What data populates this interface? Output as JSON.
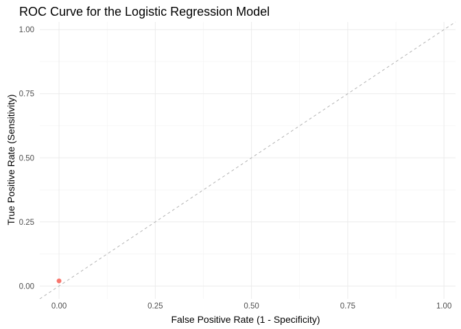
{
  "chart_data": {
    "type": "scatter",
    "title": "ROC Curve for the Logistic Regression Model",
    "xlabel": "False Positive Rate (1 - Specificity)",
    "ylabel": "True Positive Rate (Sensitivity)",
    "xlim": [
      -0.05,
      1.03
    ],
    "ylim": [
      -0.05,
      1.03
    ],
    "x_ticks": [
      0,
      0.25,
      0.5,
      0.75,
      1
    ],
    "x_tick_labels": [
      "0.00",
      "0.25",
      "0.50",
      "0.75",
      "1.00"
    ],
    "y_ticks": [
      0,
      0.25,
      0.5,
      0.75,
      1
    ],
    "y_tick_labels": [
      "0.00",
      "0.25",
      "0.50",
      "0.75",
      "1.00"
    ],
    "grid": true,
    "reference_line": {
      "from": [
        0,
        0
      ],
      "to": [
        1,
        1
      ],
      "style": "dashed",
      "color": "#b3b3b3"
    },
    "points": [
      {
        "x": 0.0,
        "y": 0.02,
        "color": "#f8766d"
      }
    ]
  }
}
